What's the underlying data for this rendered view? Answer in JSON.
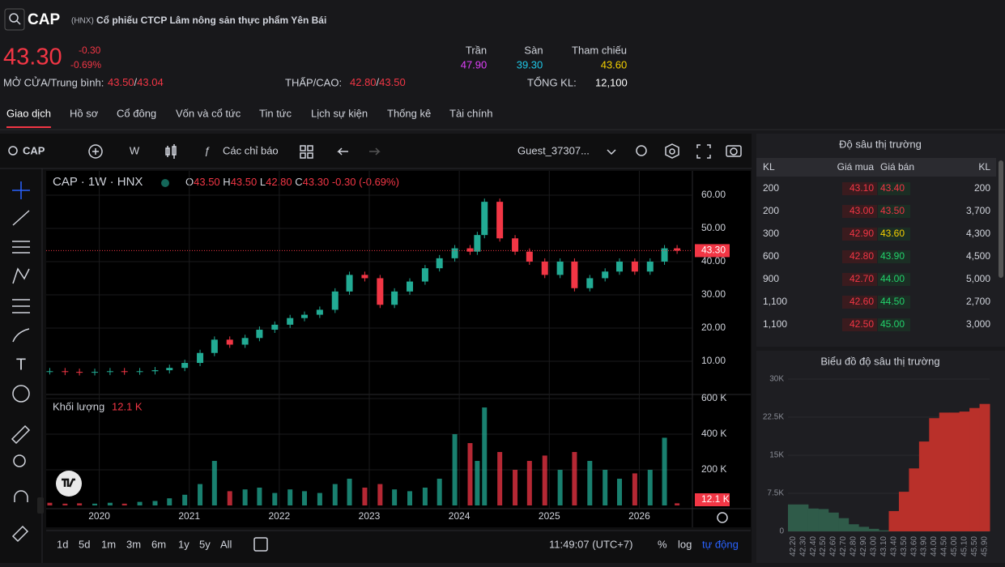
{
  "header": {
    "symbol": "CAP",
    "exchange": "(HNX)",
    "company": "Cổ phiếu CTCP Lâm nông sản thực phẩm Yên Bái",
    "price": "43.30",
    "change": "-0.30",
    "change_pct": "-0.69%",
    "ceiling_label": "Trần",
    "ceiling": "47.90",
    "floor_label": "Sàn",
    "floor": "39.30",
    "ref_label": "Tham chiếu",
    "ref": "43.60",
    "open_label": "MỞ CỬA/Trung bình:",
    "open": "43.50",
    "separator": "/",
    "avg": "43.04",
    "lowhigh_label": "THẤP/CAO:",
    "low": "42.80",
    "high": "43.50",
    "volume_label": "TỔNG KL:",
    "volume": "12,100"
  },
  "tabs": [
    "Giao dịch",
    "Hồ sơ",
    "Cổ đông",
    "Vốn và cổ tức",
    "Tin tức",
    "Lịch sự kiện",
    "Thống kê",
    "Tài chính"
  ],
  "toolbar": {
    "symbol": "CAP",
    "interval": "W",
    "indicators": "Các chỉ báo",
    "user": "Guest_37307..."
  },
  "legend": {
    "title": "CAP · 1W · HNX",
    "o_label": "O",
    "o": "43.50",
    "h_label": "H",
    "h": "43.50",
    "l_label": "L",
    "l": "42.80",
    "c_label": "C",
    "c": "43.30",
    "change": "-0.30 (-0.69%)"
  },
  "chart_data": [
    {
      "type": "candlestick",
      "color_up": "#22ab94",
      "color_down": "#f23645",
      "x": [
        2019.45,
        2019.62,
        2019.78,
        2019.95,
        2020.12,
        2020.28,
        2020.45,
        2020.62,
        2020.78,
        2020.95,
        2021.12,
        2021.28,
        2021.45,
        2021.62,
        2021.78,
        2021.95,
        2022.12,
        2022.28,
        2022.45,
        2022.62,
        2022.78,
        2022.95,
        2023.12,
        2023.28,
        2023.45,
        2023.62,
        2023.78,
        2023.95,
        2024.12,
        2024.2,
        2024.28,
        2024.45,
        2024.62,
        2024.78,
        2024.95,
        2025.12,
        2025.28,
        2025.45,
        2025.62,
        2025.78,
        2025.95,
        2026.12,
        2026.28,
        2026.42
      ],
      "values": [
        7.0,
        6.8,
        6.7,
        6.8,
        7.0,
        6.9,
        7.0,
        7.3,
        8.0,
        9.5,
        12.5,
        16.5,
        15.0,
        17.0,
        19.5,
        21.0,
        23.0,
        24.0,
        25.5,
        31.0,
        36.0,
        35.0,
        27.0,
        31.0,
        34.0,
        38.0,
        41.0,
        44.0,
        43.0,
        48.0,
        58.0,
        47.0,
        43.0,
        40.0,
        36.0,
        40.0,
        32.0,
        35.0,
        37.0,
        40.0,
        37.0,
        40.0,
        44.0,
        43.3
      ],
      "xlim": [
        2019.41,
        2026.59
      ],
      "xticks": [
        2020,
        2021,
        2022,
        2023,
        2024,
        2025,
        2026
      ],
      "ylim": [
        0,
        67.3
      ],
      "yticks": [
        {
          "value": 10,
          "label": "10.00"
        },
        {
          "value": 20,
          "label": "20.00"
        },
        {
          "value": 30,
          "label": "30.00"
        },
        {
          "value": 40,
          "label": "40.00"
        },
        {
          "value": 50,
          "label": "50.00"
        },
        {
          "value": 60,
          "label": "60.00"
        }
      ],
      "grid": true,
      "last_price": {
        "value": 43.3,
        "label": "43.30"
      }
    },
    {
      "type": "bar",
      "title": "Khối lượng",
      "x": [
        2019.45,
        2019.62,
        2019.78,
        2019.95,
        2020.12,
        2020.28,
        2020.45,
        2020.62,
        2020.78,
        2020.95,
        2021.12,
        2021.28,
        2021.45,
        2021.62,
        2021.78,
        2021.95,
        2022.12,
        2022.28,
        2022.45,
        2022.62,
        2022.78,
        2022.95,
        2023.12,
        2023.28,
        2023.45,
        2023.62,
        2023.78,
        2023.95,
        2024.12,
        2024.2,
        2024.28,
        2024.45,
        2024.62,
        2024.78,
        2024.95,
        2025.12,
        2025.28,
        2025.45,
        2025.62,
        2025.78,
        2025.95,
        2026.12,
        2026.28,
        2026.42
      ],
      "values": [
        15000,
        10000,
        12000,
        10000,
        15000,
        10000,
        20000,
        25000,
        40000,
        60000,
        120000,
        250000,
        80000,
        90000,
        100000,
        70000,
        90000,
        80000,
        70000,
        120000,
        150000,
        100000,
        120000,
        90000,
        80000,
        100000,
        150000,
        400000,
        350000,
        250000,
        550000,
        300000,
        200000,
        250000,
        280000,
        200000,
        300000,
        250000,
        200000,
        150000,
        180000,
        200000,
        380000,
        12100
      ],
      "xlim": [
        2019.41,
        2026.59
      ],
      "ylim": [
        0,
        623000
      ],
      "yticks": [
        {
          "value": 200000,
          "label": "200 K"
        },
        {
          "value": 400000,
          "label": "400 K"
        },
        {
          "value": 600000,
          "label": "600 K"
        }
      ],
      "last_value": {
        "value": 12100,
        "label": "12.1 K"
      }
    },
    {
      "type": "bar",
      "title": "Biểu đồ độ sâu thị trường",
      "categories": [
        "42.20",
        "42.30",
        "42.40",
        "42.50",
        "42.60",
        "42.70",
        "42.80",
        "42.90",
        "43.00",
        "43.10",
        "43.40",
        "43.50",
        "43.60",
        "43.90",
        "44.00",
        "44.50",
        "45.00",
        "45.10",
        "45.50",
        "45.90"
      ],
      "series": [
        {
          "color": "#2f5b49",
          "values": [
            5300,
            5300,
            4500,
            4400,
            3700,
            2600,
            1400,
            900,
            500,
            200,
            null,
            null,
            null,
            null,
            null,
            null,
            null,
            null,
            null,
            null
          ]
        },
        {
          "color": "#b9302a",
          "values": [
            null,
            null,
            null,
            null,
            null,
            null,
            null,
            null,
            null,
            null,
            4000,
            7800,
            12400,
            17700,
            22300,
            23400,
            23400,
            23600,
            24300,
            25100
          ]
        }
      ],
      "ylim": [
        0,
        30000
      ],
      "yticks": [
        0,
        {
          "value": 7500,
          "label": "7.5K"
        },
        {
          "value": 15000,
          "label": "15K"
        },
        {
          "value": 22500,
          "label": "22.5K"
        },
        {
          "value": 30000,
          "label": "30K"
        }
      ]
    }
  ],
  "ranges": [
    "1d",
    "5d",
    "1m",
    "3m",
    "6m",
    "1y",
    "5y",
    "All"
  ],
  "footer": {
    "time": "11:49:07 (UTC+7)",
    "percent": "%",
    "log": "log",
    "auto": "tự động"
  },
  "order_book": {
    "title": "Độ sâu thị trường",
    "columns": [
      "KL",
      "Giá mua",
      "Giá bán",
      "KL"
    ],
    "rows": [
      [
        "200",
        "43.10",
        "43.40",
        "200"
      ],
      [
        "200",
        "43.00",
        "43.50",
        "3,700"
      ],
      [
        "300",
        "42.90",
        "43.60",
        "4,300"
      ],
      [
        "600",
        "42.80",
        "43.90",
        "4,500"
      ],
      [
        "900",
        "42.70",
        "44.00",
        "5,000"
      ],
      [
        "1,100",
        "42.60",
        "44.50",
        "2,700"
      ],
      [
        "1,100",
        "42.50",
        "45.00",
        "3,000"
      ]
    ]
  }
}
